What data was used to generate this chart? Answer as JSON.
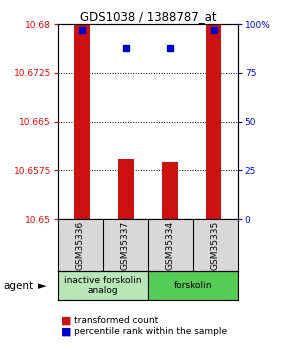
{
  "title": "GDS1038 / 1388787_at",
  "samples": [
    "GSM35336",
    "GSM35337",
    "GSM35334",
    "GSM35335"
  ],
  "red_values": [
    10.68,
    10.6592,
    10.6588,
    10.68
  ],
  "blue_values": [
    97,
    88,
    88,
    97
  ],
  "ylim_left": [
    10.65,
    10.68
  ],
  "ylim_right": [
    0,
    100
  ],
  "yticks_left": [
    10.65,
    10.6575,
    10.665,
    10.6725,
    10.68
  ],
  "yticks_right": [
    0,
    25,
    50,
    75,
    100
  ],
  "ytick_labels_left": [
    "10.65",
    "10.6575",
    "10.665",
    "10.6725",
    "10.68"
  ],
  "ytick_labels_right": [
    "0",
    "25",
    "50",
    "75",
    "100%"
  ],
  "grid_lines": [
    10.6575,
    10.665,
    10.6725
  ],
  "groups": [
    {
      "label": "inactive forskolin\nanalog",
      "color": "#b8e6b8",
      "start": 0,
      "end": 2
    },
    {
      "label": "forskolin",
      "color": "#55cc55",
      "start": 2,
      "end": 4
    }
  ],
  "bar_color": "#cc1111",
  "dot_color": "#0000cc",
  "background_color": "#ffffff",
  "sample_box_color": "#d8d8d8",
  "legend_red": "transformed count",
  "legend_blue": "percentile rank within the sample",
  "bar_width": 0.35
}
